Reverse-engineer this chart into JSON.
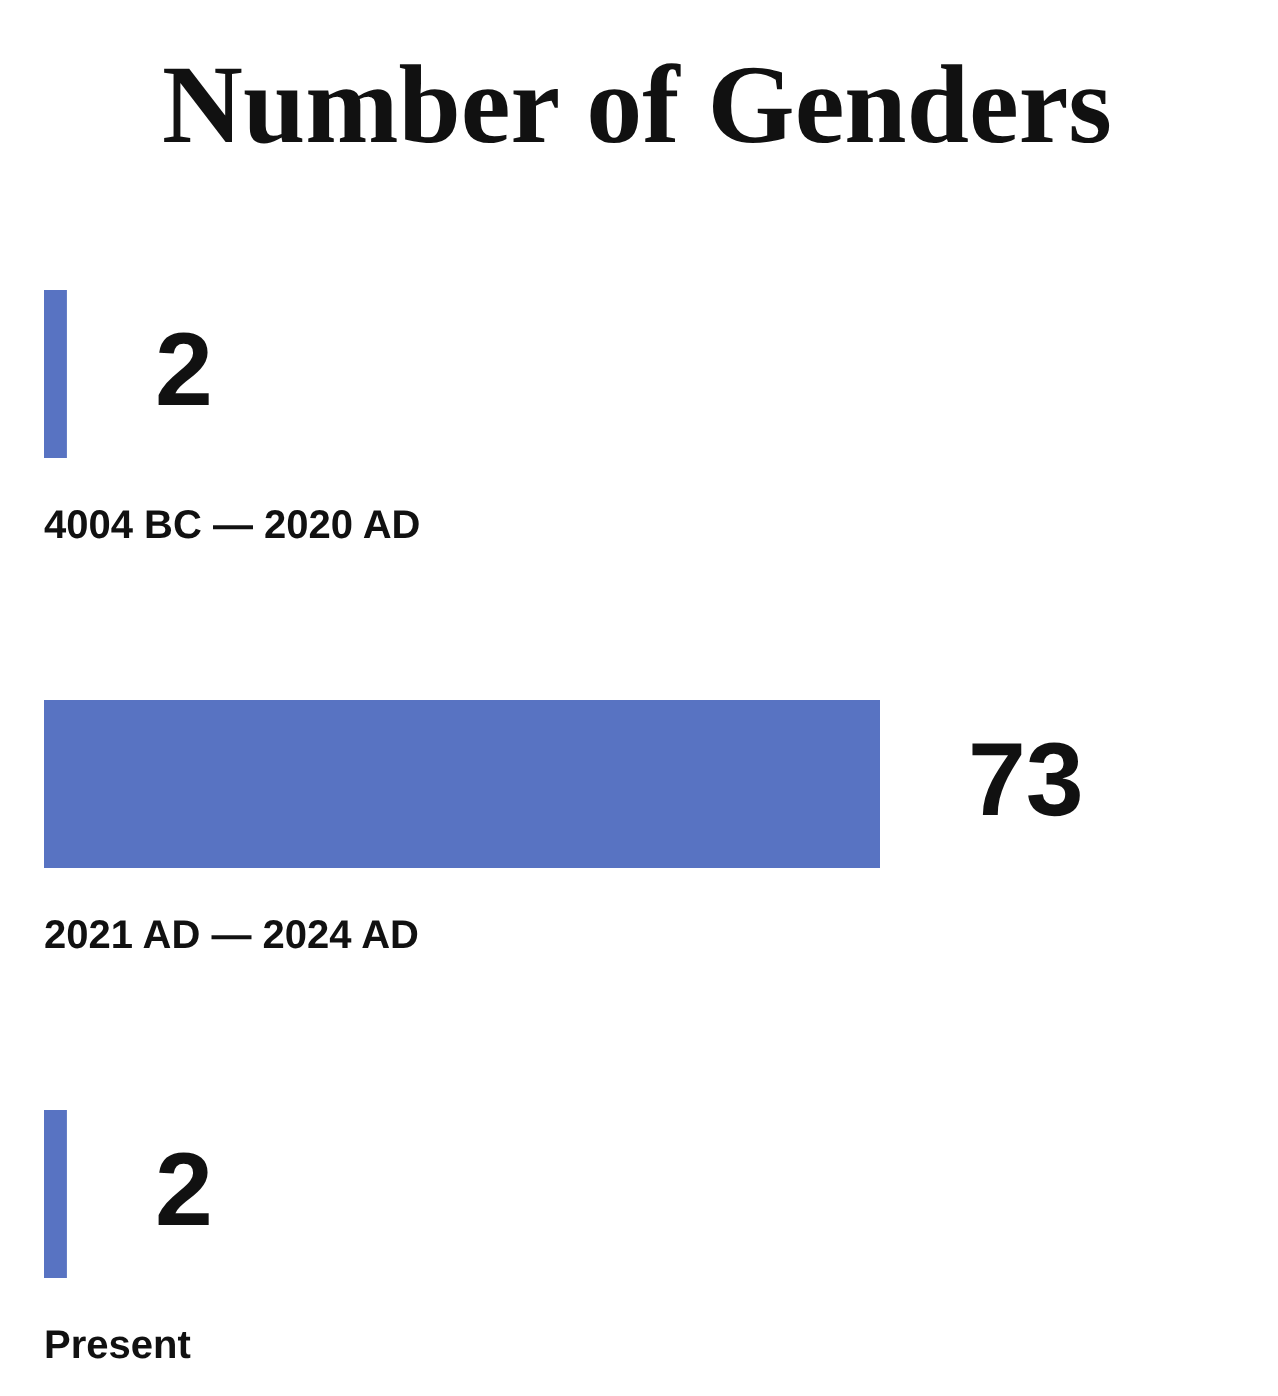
{
  "chart_data": {
    "type": "bar",
    "orientation": "horizontal",
    "title": "Number of Genders",
    "categories": [
      "4004 BC — 2020 AD",
      "2021 AD — 2024 AD",
      "Present"
    ],
    "values": [
      2,
      73,
      2
    ],
    "color": "#5873c2",
    "data_labels": true
  }
}
